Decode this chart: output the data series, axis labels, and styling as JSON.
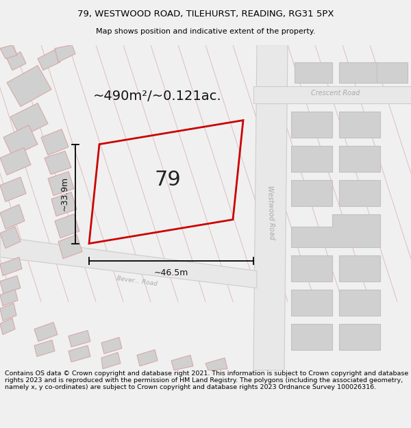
{
  "title_line1": "79, WESTWOOD ROAD, TILEHURST, READING, RG31 5PX",
  "title_line2": "Map shows position and indicative extent of the property.",
  "footer_text": "Contains OS data © Crown copyright and database right 2021. This information is subject to Crown copyright and database rights 2023 and is reproduced with the permission of HM Land Registry. The polygons (including the associated geometry, namely x, y co-ordinates) are subject to Crown copyright and database rights 2023 Ordnance Survey 100026316.",
  "area_label": "~490m²/~0.121ac.",
  "property_number": "79",
  "dim_width": "~46.5m",
  "dim_height": "~33.9m",
  "road_westwood": "Westwood Road",
  "road_crescent": "Crescent Road",
  "road_bevel": "Bever... Road",
  "map_bg": "#ebebeb",
  "property_color": "#cc0000",
  "building_fill": "#d0d0d0",
  "building_stroke": "#c0c0c0",
  "road_fill": "#e8e8e8",
  "road_line": "#d8a8a8",
  "title_fontsize": 9.5,
  "footer_fontsize": 7
}
